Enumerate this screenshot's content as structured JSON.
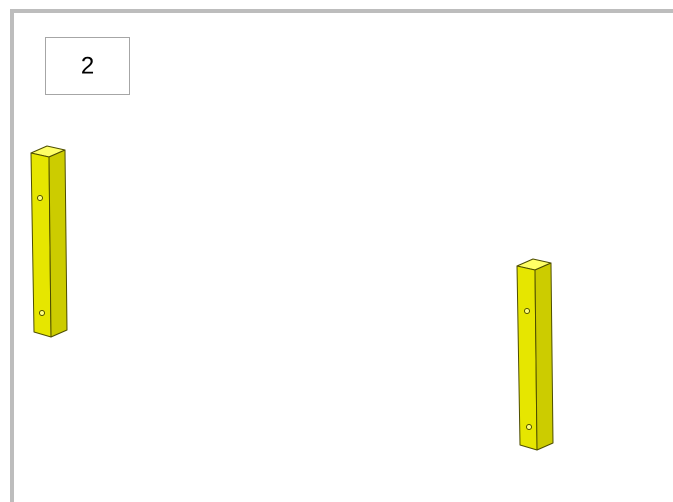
{
  "step": "2"
}
